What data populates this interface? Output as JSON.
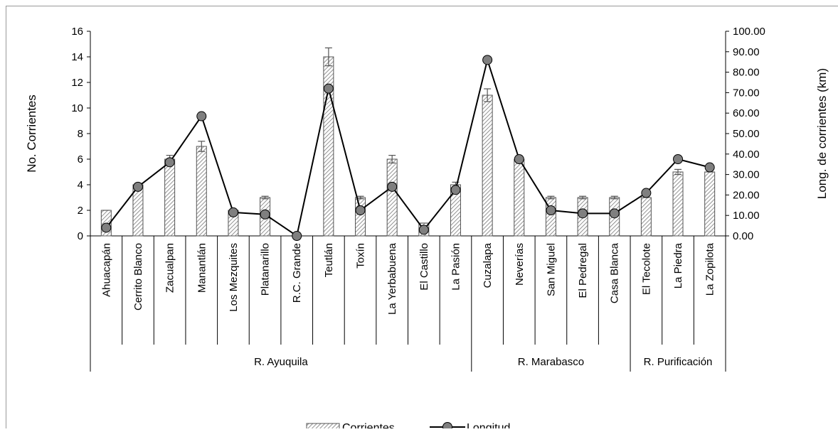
{
  "chart_data": {
    "type": "bar",
    "categories": [
      "Ahuacapán",
      "Cerrito Blanco",
      "Zacualpan",
      "Manantlán",
      "Los Mezquites",
      "Platanarillo",
      "R.C. Grande",
      "Teutlán",
      "Toxín",
      "La Yerbabuena",
      "El Castillo",
      "La Pasión",
      "Cuzalapa",
      "Neverías",
      "San Miguel",
      "El Pedregal",
      "Casa Blanca",
      "El Tecolote",
      "La Piedra",
      "La Zopilota"
    ],
    "groups": [
      {
        "label": "R. Ayuquila",
        "count": 12
      },
      {
        "label": "R. Marabasco",
        "count": 5
      },
      {
        "label": "R. Purificación",
        "count": 3
      }
    ],
    "series": [
      {
        "name": "Corrientes",
        "type": "bar",
        "axis": "left",
        "values": [
          2,
          4,
          6,
          7,
          2,
          3,
          0,
          14,
          3,
          6,
          1,
          4,
          11,
          6,
          3,
          3,
          3,
          3,
          5,
          5
        ],
        "errors": [
          0,
          0.1,
          0.3,
          0.4,
          0,
          0.1,
          0,
          0.7,
          0.1,
          0.3,
          0,
          0.2,
          0.5,
          0.1,
          0.1,
          0.1,
          0.1,
          0,
          0.2,
          0
        ]
      },
      {
        "name": "Longitud",
        "type": "line",
        "axis": "right",
        "values": [
          4,
          24,
          36,
          58.5,
          11.5,
          10.5,
          0,
          72,
          12.5,
          24,
          3,
          22.5,
          86,
          37.5,
          12.5,
          11,
          11,
          21,
          37.5,
          33.5
        ]
      }
    ],
    "ylabel": "No. Corrientes",
    "ylim": [
      0,
      16
    ],
    "yticks": [
      "0",
      "2",
      "4",
      "6",
      "8",
      "10",
      "12",
      "14",
      "16"
    ],
    "y2label": "Long. de corrientes (km)",
    "y2lim": [
      0,
      100
    ],
    "y2ticks": [
      "0.00",
      "10.00",
      "20.00",
      "30.00",
      "40.00",
      "50.00",
      "60.00",
      "70.00",
      "80.00",
      "90.00",
      "100.00"
    ],
    "grid": false,
    "legend_position": "bottom"
  }
}
